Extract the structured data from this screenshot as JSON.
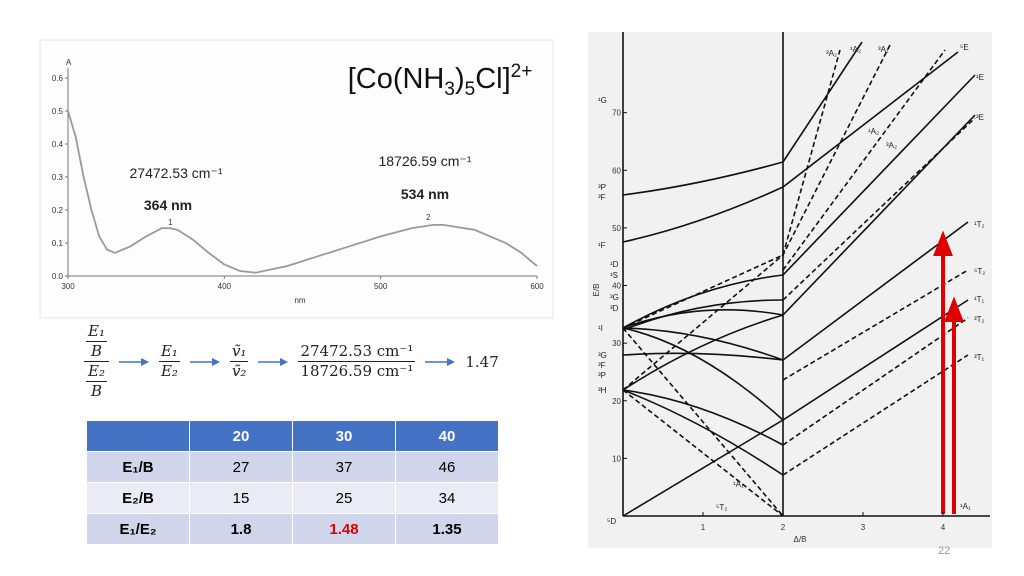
{
  "title": [
    "[Co(NH",
    "3",
    ")",
    "5",
    "Cl]",
    "2+"
  ],
  "spectrum": {
    "type": "line",
    "y_label": "A",
    "x_label": "nm",
    "xlim": [
      300,
      600
    ],
    "xticks": [
      300,
      400,
      500,
      600
    ],
    "ylim": [
      0,
      0.6
    ],
    "yticks": [
      {
        "value": 0,
        "label": "0.0"
      },
      0.1,
      0.2,
      0.3,
      0.4,
      0.5,
      0.6
    ],
    "color": "#9a9a9a",
    "x": [
      300,
      305,
      310,
      315,
      320,
      325,
      330,
      340,
      350,
      360,
      365,
      370,
      380,
      390,
      400,
      410,
      420,
      430,
      440,
      460,
      480,
      500,
      520,
      534,
      540,
      560,
      580,
      590,
      600
    ],
    "values": [
      0.5,
      0.42,
      0.3,
      0.2,
      0.12,
      0.08,
      0.07,
      0.09,
      0.12,
      0.145,
      0.145,
      0.14,
      0.11,
      0.07,
      0.035,
      0.015,
      0.01,
      0.02,
      0.03,
      0.06,
      0.09,
      0.12,
      0.145,
      0.155,
      0.155,
      0.14,
      0.1,
      0.07,
      0.03
    ],
    "peak_labels": [
      "1",
      "2"
    ],
    "annotations": [
      "27472.53 cm⁻¹",
      "364 nm",
      "18726.59 cm⁻¹",
      "534 nm"
    ]
  },
  "equation": {
    "ratio_of_ratios": {
      "num": {
        "num": "E₁",
        "den": "B"
      },
      "den": {
        "num": "E₂",
        "den": "B"
      }
    },
    "energy_ratio": {
      "num": "E₁",
      "den": "E₂"
    },
    "wavenumber_ratio": {
      "num": "ṽ₁",
      "den": "ṽ₂"
    },
    "value_ratio": {
      "num": "27472.53 cm⁻¹",
      "den": "18726.59 cm⁻¹"
    },
    "result": "1.47"
  },
  "table": {
    "header": [
      "20",
      "30",
      "40"
    ],
    "rows": [
      [
        "E₁/B",
        "27",
        "37",
        "46"
      ],
      [
        "E₂/B",
        "15",
        "25",
        "34"
      ],
      [
        "E₁/E₂",
        "1.8",
        "1.48",
        "1.35"
      ]
    ]
  },
  "ts_diagram": {
    "x_label": "Δ/B",
    "y_label": "E/B",
    "xlim": [
      0,
      4.6
    ],
    "ylim": [
      0,
      84
    ],
    "xticks": [
      1,
      2,
      3,
      4
    ],
    "yticks": [
      10,
      20,
      30,
      40,
      50,
      60,
      70
    ],
    "left_labels": [
      "¹G",
      "³P",
      "³F",
      "¹F",
      "¹D",
      "¹S",
      "³G",
      "³D",
      "¹I",
      "³G",
      "³F",
      "³P",
      "³H",
      "⁵D"
    ],
    "right_labels": [
      "⁵E",
      "¹E",
      "³E",
      "¹T₂",
      "⁵T₂",
      "¹T₁",
      "³T₂",
      "³T₁",
      "¹A₁"
    ],
    "top_labels": [
      "³A₂",
      "¹A₂",
      "³A₁"
    ],
    "middle_labels": [
      "¹A₂",
      "³A₂",
      "¹A₁",
      "⁵T₂"
    ]
  },
  "page_number": "22"
}
